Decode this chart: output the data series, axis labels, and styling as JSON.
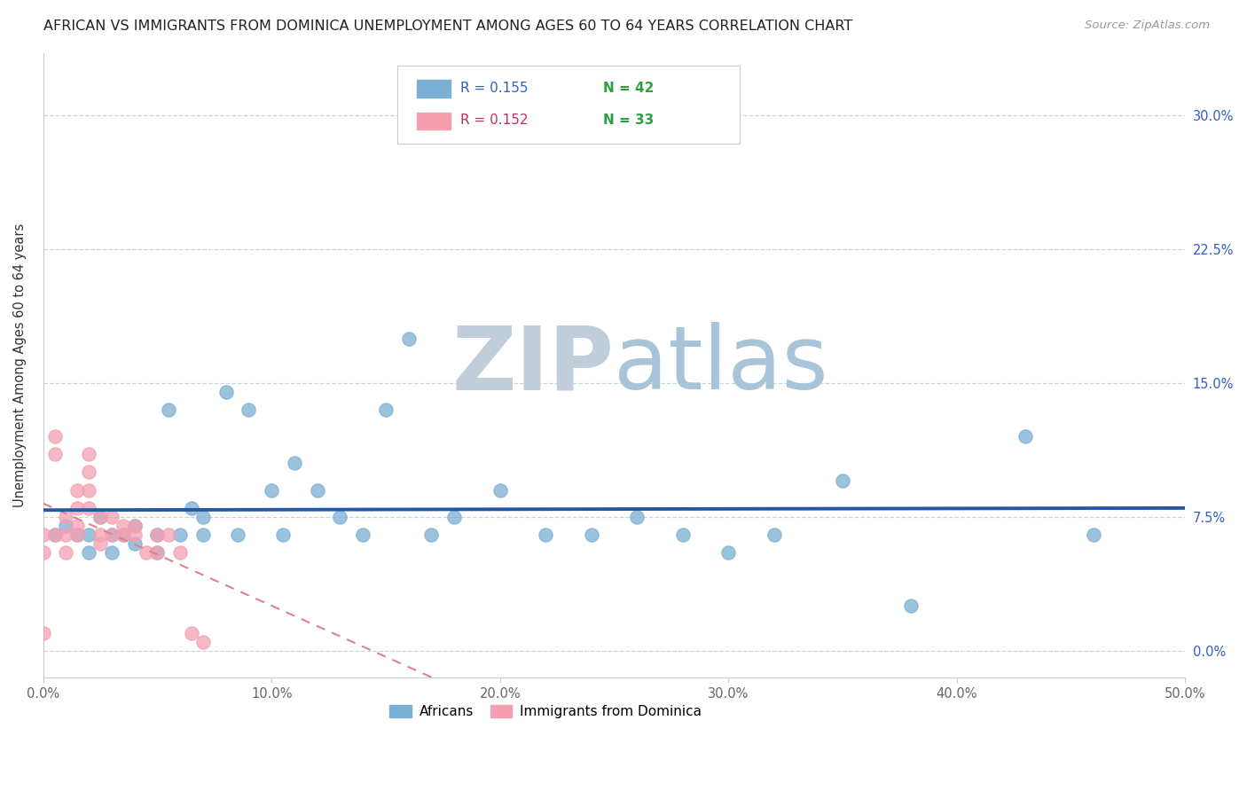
{
  "title": "AFRICAN VS IMMIGRANTS FROM DOMINICA UNEMPLOYMENT AMONG AGES 60 TO 64 YEARS CORRELATION CHART",
  "source": "Source: ZipAtlas.com",
  "ylabel": "Unemployment Among Ages 60 to 64 years",
  "xlim": [
    0.0,
    0.5
  ],
  "ylim": [
    -0.015,
    0.335
  ],
  "xticks": [
    0.0,
    0.1,
    0.2,
    0.3,
    0.4,
    0.5
  ],
  "xtick_labels": [
    "0.0%",
    "10.0%",
    "20.0%",
    "30.0%",
    "40.0%",
    "50.0%"
  ],
  "yticks": [
    0.0,
    0.075,
    0.15,
    0.225,
    0.3
  ],
  "ytick_labels": [
    "0.0%",
    "7.5%",
    "15.0%",
    "22.5%",
    "30.0%"
  ],
  "africans_R": 0.155,
  "africans_N": 42,
  "dominica_R": 0.152,
  "dominica_N": 33,
  "blue_scatter": "#7BAFD4",
  "pink_scatter": "#F4A0B0",
  "regression_blue": "#2457A4",
  "regression_pink": "#E08090",
  "grid_color": "#C8D4E0",
  "africans_x": [
    0.005,
    0.01,
    0.015,
    0.02,
    0.02,
    0.025,
    0.03,
    0.03,
    0.035,
    0.04,
    0.04,
    0.05,
    0.05,
    0.055,
    0.06,
    0.065,
    0.07,
    0.07,
    0.08,
    0.085,
    0.09,
    0.1,
    0.105,
    0.11,
    0.12,
    0.13,
    0.14,
    0.15,
    0.16,
    0.17,
    0.18,
    0.2,
    0.22,
    0.24,
    0.26,
    0.28,
    0.3,
    0.32,
    0.35,
    0.38,
    0.43,
    0.46
  ],
  "africans_y": [
    0.065,
    0.07,
    0.065,
    0.065,
    0.055,
    0.075,
    0.065,
    0.055,
    0.065,
    0.07,
    0.06,
    0.065,
    0.055,
    0.135,
    0.065,
    0.08,
    0.075,
    0.065,
    0.145,
    0.065,
    0.135,
    0.09,
    0.065,
    0.105,
    0.09,
    0.075,
    0.065,
    0.135,
    0.175,
    0.065,
    0.075,
    0.09,
    0.065,
    0.065,
    0.075,
    0.065,
    0.055,
    0.065,
    0.095,
    0.025,
    0.12,
    0.065
  ],
  "dominica_x": [
    0.0,
    0.0,
    0.0,
    0.005,
    0.005,
    0.005,
    0.01,
    0.01,
    0.01,
    0.015,
    0.015,
    0.015,
    0.015,
    0.02,
    0.02,
    0.02,
    0.02,
    0.025,
    0.025,
    0.025,
    0.03,
    0.03,
    0.035,
    0.035,
    0.04,
    0.04,
    0.045,
    0.05,
    0.05,
    0.055,
    0.06,
    0.065,
    0.07
  ],
  "dominica_y": [
    0.065,
    0.055,
    0.01,
    0.12,
    0.11,
    0.065,
    0.075,
    0.065,
    0.055,
    0.09,
    0.08,
    0.07,
    0.065,
    0.11,
    0.1,
    0.09,
    0.08,
    0.075,
    0.065,
    0.06,
    0.075,
    0.065,
    0.07,
    0.065,
    0.07,
    0.065,
    0.055,
    0.065,
    0.055,
    0.065,
    0.055,
    0.01,
    0.005
  ]
}
